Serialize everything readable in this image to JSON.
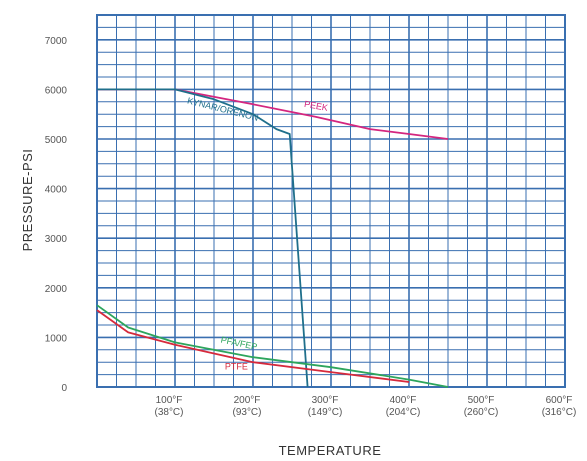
{
  "chart_data": {
    "type": "line",
    "title": "",
    "xlabel": "TEMPERATURE",
    "ylabel": "PRESSURE-PSI",
    "xlim": [
      0,
      600
    ],
    "ylim": [
      0,
      7500
    ],
    "grid": true,
    "colors": {
      "grid": "#3a6fb0",
      "axis_box": "#3a6fb0"
    },
    "y_ticks": [
      {
        "value": 0,
        "label": "0"
      },
      {
        "value": 1000,
        "label": "1000"
      },
      {
        "value": 2000,
        "label": "2000"
      },
      {
        "value": 3000,
        "label": "3000"
      },
      {
        "value": 4000,
        "label": "4000"
      },
      {
        "value": 5000,
        "label": "5000"
      },
      {
        "value": 6000,
        "label": "6000"
      },
      {
        "value": 7000,
        "label": "7000"
      }
    ],
    "x_ticks": [
      {
        "value": 100,
        "line1": "100°F",
        "line2": "(38°C)"
      },
      {
        "value": 200,
        "line1": "200°F",
        "line2": "(93°C)"
      },
      {
        "value": 300,
        "line1": "300°F",
        "line2": "(149°C)"
      },
      {
        "value": 400,
        "line1": "400°F",
        "line2": "(204°C)"
      },
      {
        "value": 500,
        "line1": "500°F",
        "line2": "(260°C)"
      },
      {
        "value": 600,
        "line1": "600°F",
        "line2": "(316°C)"
      }
    ],
    "series": [
      {
        "name": "PEEK",
        "color": "#d4267f",
        "x": [
          0,
          100,
          200,
          280,
          350,
          400,
          450
        ],
        "y": [
          6000,
          6000,
          5700,
          5450,
          5200,
          5100,
          5000
        ]
      },
      {
        "name": "KYNAR/ORENON",
        "color": "#1f6f8b",
        "x": [
          0,
          100,
          150,
          200,
          230,
          247,
          270
        ],
        "y": [
          6000,
          6000,
          5800,
          5500,
          5200,
          5100,
          0
        ]
      },
      {
        "name": "PFA/FEP",
        "color": "#2da55c",
        "x": [
          0,
          40,
          100,
          200,
          300,
          400,
          450
        ],
        "y": [
          1650,
          1200,
          900,
          600,
          400,
          150,
          0
        ]
      },
      {
        "name": "PTFE",
        "color": "#d62a3c",
        "x": [
          0,
          40,
          100,
          200,
          300,
          400
        ],
        "y": [
          1550,
          1100,
          850,
          500,
          300,
          100
        ]
      }
    ]
  }
}
